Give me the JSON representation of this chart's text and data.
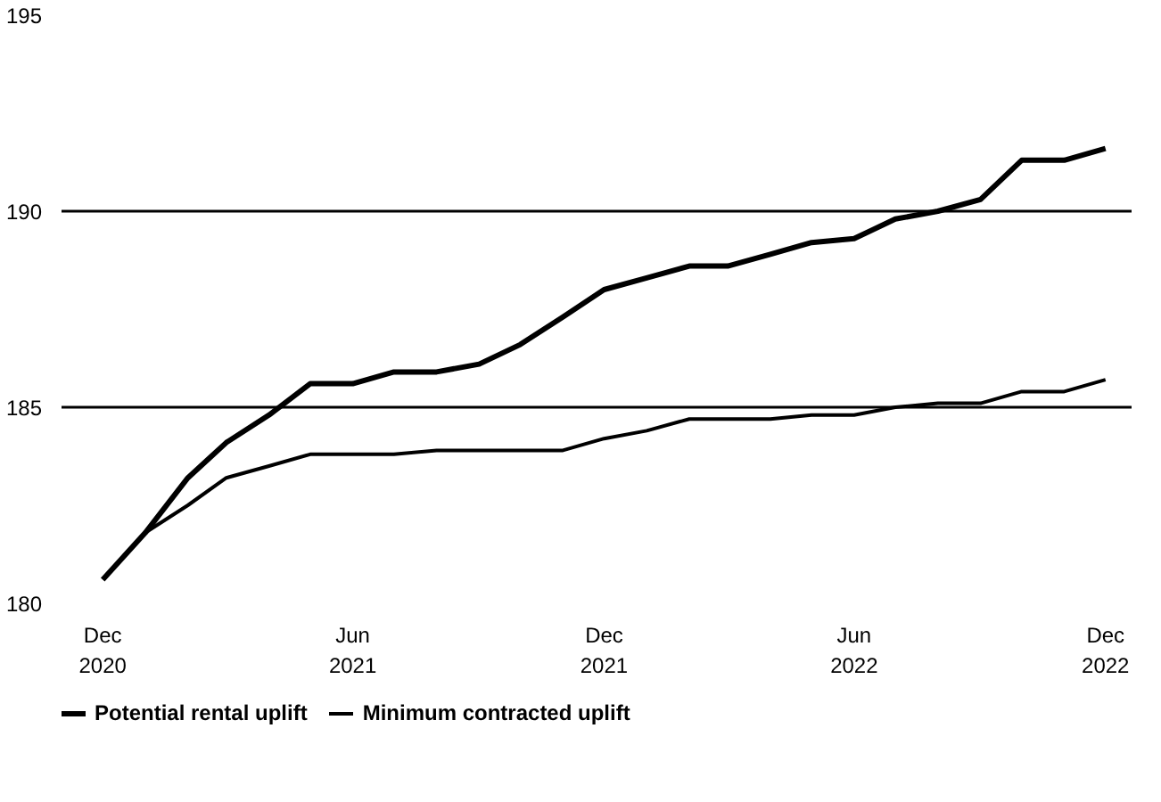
{
  "chart_data": {
    "type": "line",
    "x": [
      "2020-12",
      "2021-01",
      "2021-02",
      "2021-03",
      "2021-04",
      "2021-05",
      "2021-06",
      "2021-07",
      "2021-08",
      "2021-09",
      "2021-10",
      "2021-11",
      "2021-12",
      "2022-01",
      "2022-02",
      "2022-03",
      "2022-04",
      "2022-05",
      "2022-06",
      "2022-07",
      "2022-08",
      "2022-09",
      "2022-10",
      "2022-11",
      "2022-12"
    ],
    "series": [
      {
        "name": "Potential rental uplift",
        "color": "#000000",
        "values": [
          180.6,
          181.8,
          183.2,
          184.1,
          184.8,
          185.6,
          185.6,
          185.9,
          185.9,
          186.1,
          186.6,
          187.3,
          188.0,
          188.3,
          188.6,
          188.6,
          188.9,
          189.2,
          189.3,
          189.8,
          190.0,
          190.3,
          191.3,
          191.3,
          191.6
        ]
      },
      {
        "name": "Minimum contracted uplift",
        "color": "#000000",
        "values": [
          null,
          181.8,
          182.5,
          183.2,
          183.5,
          183.8,
          183.8,
          183.8,
          183.9,
          183.9,
          183.9,
          183.9,
          184.2,
          184.4,
          184.7,
          184.7,
          184.7,
          184.8,
          184.8,
          185.0,
          185.1,
          185.1,
          185.4,
          185.4,
          185.7
        ]
      }
    ],
    "ylim": [
      180,
      195
    ],
    "yticks": [
      180,
      185,
      190,
      195
    ],
    "xlim": [
      "2020-11-01",
      "2022-12-20"
    ],
    "xticks": [
      {
        "value": "2020-12",
        "label": "Dec\n2020"
      },
      {
        "value": "2021-06",
        "label": "Jun\n2021"
      },
      {
        "value": "2021-12",
        "label": "Dec\n2021"
      },
      {
        "value": "2022-06",
        "label": "Jun\n2022"
      },
      {
        "value": "2022-12",
        "label": "Dec\n2022"
      }
    ],
    "grid": "y",
    "legend": "bottom",
    "marker": "none",
    "line_style": "solid"
  }
}
